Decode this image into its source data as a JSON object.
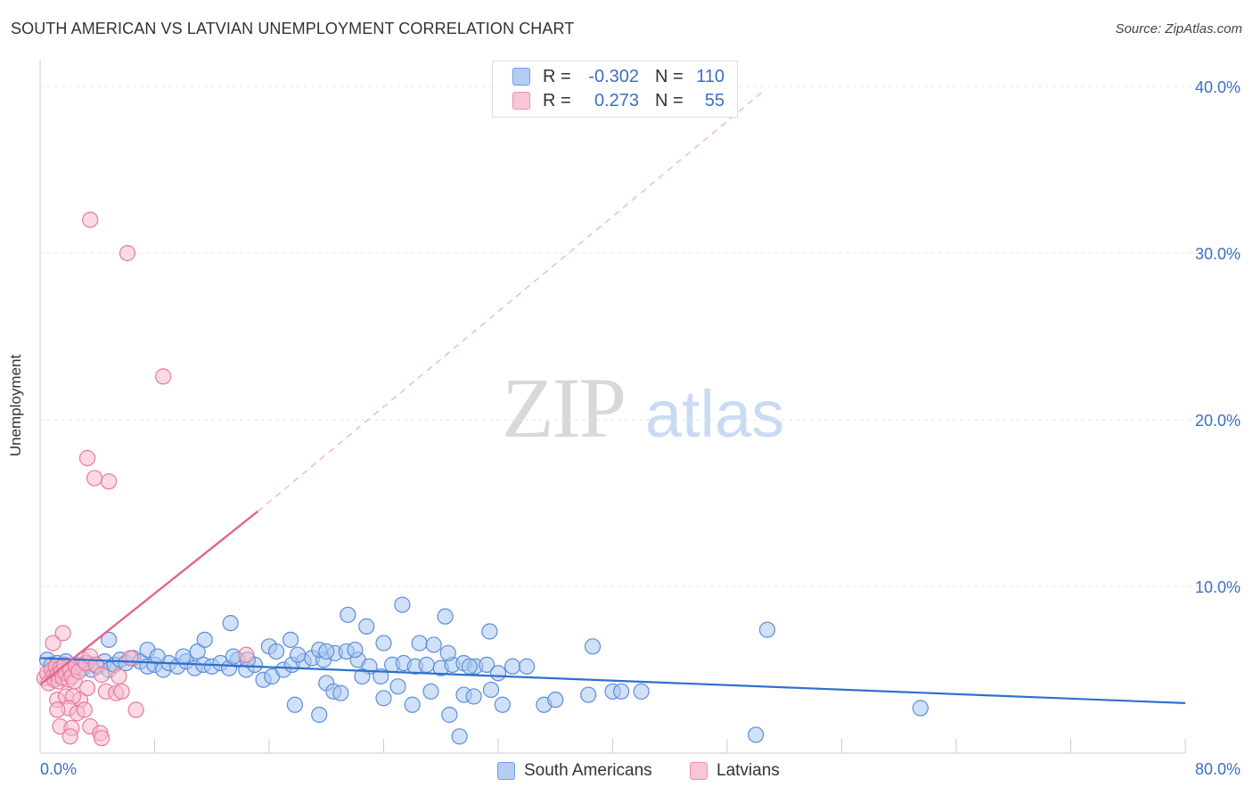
{
  "header": {
    "title": "SOUTH AMERICAN VS LATVIAN UNEMPLOYMENT CORRELATION CHART",
    "source": "Source: ZipAtlas.com"
  },
  "watermark": {
    "zip": "ZIP",
    "atlas": "atlas"
  },
  "legend": {
    "rows": [
      {
        "r_label": "R =",
        "r_value": "-0.302",
        "n_label": "N =",
        "n_value": "110",
        "color": "#6a9fe0"
      },
      {
        "r_label": "R =",
        "r_value": "0.273",
        "n_label": "N =",
        "n_value": "55",
        "color": "#ee8fae"
      }
    ]
  },
  "colors": {
    "blue_fill": "#a9c6f0",
    "blue_stroke": "#5b8ed6",
    "blue_line": "#2f6fcc",
    "pink_fill": "#f7bccd",
    "pink_stroke": "#e8799d",
    "pink_line": "#e06690",
    "axis_text": "#3b6fc6",
    "grid": "#e6e6e6"
  },
  "chart_data": {
    "type": "scatter",
    "title": "SOUTH AMERICAN VS LATVIAN UNEMPLOYMENT CORRELATION CHART",
    "xlabel": "",
    "ylabel": "Unemployment",
    "xlim": [
      0,
      80
    ],
    "ylim": [
      0,
      42
    ],
    "y_ticks": [
      10,
      20,
      30,
      40
    ],
    "y_tick_labels": [
      "10.0%",
      "20.0%",
      "30.0%",
      "40.0%"
    ],
    "x_tick_labels": [
      "0.0%",
      "80.0%"
    ],
    "x_minor_ticks": [
      8,
      16,
      24,
      32,
      40,
      48,
      56,
      64,
      72,
      80
    ],
    "grid": true,
    "legend_position": "top-center",
    "series": [
      {
        "name": "South Americans",
        "r": -0.302,
        "n": 110,
        "trend": {
          "x": [
            0,
            80
          ],
          "y": [
            5.7,
            3.0
          ],
          "style": "solid"
        },
        "points": [
          [
            0.5,
            5.6
          ],
          [
            0.8,
            5.3
          ],
          [
            1.0,
            5.0
          ],
          [
            1.2,
            5.4
          ],
          [
            1.5,
            5.1
          ],
          [
            1.8,
            5.5
          ],
          [
            2.0,
            5.2
          ],
          [
            2.3,
            5.0
          ],
          [
            2.6,
            5.3
          ],
          [
            3.0,
            5.1
          ],
          [
            3.3,
            5.4
          ],
          [
            3.6,
            5.0
          ],
          [
            4.0,
            5.2
          ],
          [
            4.5,
            5.5
          ],
          [
            4.8,
            5.0
          ],
          [
            5.2,
            5.3
          ],
          [
            5.6,
            5.6
          ],
          [
            6.0,
            5.4
          ],
          [
            6.5,
            5.7
          ],
          [
            7.0,
            5.5
          ],
          [
            7.5,
            5.2
          ],
          [
            8.0,
            5.3
          ],
          [
            8.6,
            5.0
          ],
          [
            9.0,
            5.4
          ],
          [
            9.6,
            5.2
          ],
          [
            10.2,
            5.5
          ],
          [
            10.8,
            5.1
          ],
          [
            11.4,
            5.3
          ],
          [
            12.0,
            5.2
          ],
          [
            12.6,
            5.4
          ],
          [
            13.2,
            5.1
          ],
          [
            13.8,
            5.6
          ],
          [
            14.4,
            5.0
          ],
          [
            15.0,
            5.3
          ],
          [
            15.6,
            4.4
          ],
          [
            16.2,
            4.6
          ],
          [
            17.0,
            5.0
          ],
          [
            17.6,
            5.3
          ],
          [
            18.4,
            5.5
          ],
          [
            19.0,
            5.7
          ],
          [
            19.8,
            5.6
          ],
          [
            20.6,
            6.0
          ],
          [
            21.4,
            6.1
          ],
          [
            22.2,
            5.6
          ],
          [
            23.0,
            5.2
          ],
          [
            23.8,
            4.6
          ],
          [
            24.6,
            5.3
          ],
          [
            25.4,
            5.4
          ],
          [
            26.2,
            5.2
          ],
          [
            27.0,
            5.3
          ],
          [
            28.0,
            5.1
          ],
          [
            28.8,
            5.3
          ],
          [
            29.6,
            5.4
          ],
          [
            30.4,
            5.2
          ],
          [
            31.2,
            5.3
          ],
          [
            32.0,
            4.8
          ],
          [
            4.8,
            6.8
          ],
          [
            7.5,
            6.2
          ],
          [
            8.2,
            5.8
          ],
          [
            10.0,
            5.8
          ],
          [
            11.0,
            6.1
          ],
          [
            13.5,
            5.8
          ],
          [
            14.5,
            5.6
          ],
          [
            16.0,
            6.4
          ],
          [
            16.5,
            6.1
          ],
          [
            17.5,
            6.8
          ],
          [
            18.0,
            5.9
          ],
          [
            19.5,
            6.2
          ],
          [
            20.0,
            6.1
          ],
          [
            22.0,
            6.2
          ],
          [
            24.0,
            6.6
          ],
          [
            26.5,
            6.6
          ],
          [
            27.5,
            6.5
          ],
          [
            28.5,
            6.0
          ],
          [
            33.0,
            5.2
          ],
          [
            34.0,
            5.2
          ],
          [
            30.0,
            5.2
          ],
          [
            11.5,
            6.8
          ],
          [
            13.3,
            7.8
          ],
          [
            21.5,
            8.3
          ],
          [
            22.8,
            7.6
          ],
          [
            25.3,
            8.9
          ],
          [
            28.3,
            8.2
          ],
          [
            31.4,
            7.3
          ],
          [
            38.6,
            6.4
          ],
          [
            50.8,
            7.4
          ],
          [
            20.0,
            4.2
          ],
          [
            20.5,
            3.7
          ],
          [
            21.0,
            3.6
          ],
          [
            22.5,
            4.6
          ],
          [
            24.0,
            3.3
          ],
          [
            25.0,
            4.0
          ],
          [
            26.0,
            2.9
          ],
          [
            27.3,
            3.7
          ],
          [
            28.6,
            2.3
          ],
          [
            29.6,
            3.5
          ],
          [
            30.3,
            3.4
          ],
          [
            31.5,
            3.8
          ],
          [
            32.3,
            2.9
          ],
          [
            35.2,
            2.9
          ],
          [
            36.0,
            3.2
          ],
          [
            38.3,
            3.5
          ],
          [
            40.0,
            3.7
          ],
          [
            40.6,
            3.7
          ],
          [
            42.0,
            3.7
          ],
          [
            17.8,
            2.9
          ],
          [
            19.5,
            2.3
          ],
          [
            29.3,
            1.0
          ],
          [
            50.0,
            1.1
          ],
          [
            61.5,
            2.7
          ]
        ]
      },
      {
        "name": "Latvians",
        "r": 0.273,
        "n": 55,
        "trend_solid": {
          "x": [
            0,
            15.2
          ],
          "y": [
            4.1,
            14.5
          ]
        },
        "trend_dashed": {
          "x": [
            15.2,
            50.5
          ],
          "y": [
            14.5,
            39.7
          ]
        },
        "points": [
          [
            0.3,
            4.5
          ],
          [
            0.5,
            4.8
          ],
          [
            0.6,
            4.2
          ],
          [
            0.8,
            5.0
          ],
          [
            0.9,
            4.6
          ],
          [
            1.0,
            4.4
          ],
          [
            1.1,
            5.2
          ],
          [
            1.2,
            4.7
          ],
          [
            1.3,
            4.3
          ],
          [
            1.4,
            5.1
          ],
          [
            1.5,
            4.9
          ],
          [
            1.6,
            4.5
          ],
          [
            1.7,
            5.3
          ],
          [
            1.8,
            4.8
          ],
          [
            2.0,
            4.4
          ],
          [
            2.1,
            5.0
          ],
          [
            2.2,
            4.6
          ],
          [
            2.4,
            4.3
          ],
          [
            2.5,
            5.2
          ],
          [
            2.7,
            4.9
          ],
          [
            3.0,
            5.6
          ],
          [
            3.2,
            5.4
          ],
          [
            3.5,
            5.8
          ],
          [
            3.9,
            5.3
          ],
          [
            4.3,
            4.7
          ],
          [
            5.5,
            4.6
          ],
          [
            6.3,
            5.7
          ],
          [
            0.9,
            6.6
          ],
          [
            1.6,
            7.2
          ],
          [
            2.8,
            3.2
          ],
          [
            3.3,
            3.9
          ],
          [
            4.6,
            3.7
          ],
          [
            5.3,
            3.6
          ],
          [
            5.7,
            3.7
          ],
          [
            1.2,
            3.2
          ],
          [
            1.8,
            3.4
          ],
          [
            2.3,
            3.4
          ],
          [
            2.0,
            2.7
          ],
          [
            2.6,
            2.4
          ],
          [
            3.1,
            2.6
          ],
          [
            1.2,
            2.6
          ],
          [
            6.7,
            2.6
          ],
          [
            1.4,
            1.6
          ],
          [
            2.2,
            1.5
          ],
          [
            3.5,
            1.6
          ],
          [
            4.2,
            1.2
          ],
          [
            4.3,
            0.9
          ],
          [
            2.1,
            1.0
          ],
          [
            14.4,
            5.9
          ],
          [
            3.3,
            17.7
          ],
          [
            3.5,
            32.0
          ],
          [
            6.1,
            30.0
          ],
          [
            8.6,
            22.6
          ],
          [
            3.8,
            16.5
          ],
          [
            4.8,
            16.3
          ]
        ]
      }
    ]
  },
  "bottom_legend": {
    "items": [
      {
        "label": "South Americans"
      },
      {
        "label": "Latvians"
      }
    ]
  }
}
